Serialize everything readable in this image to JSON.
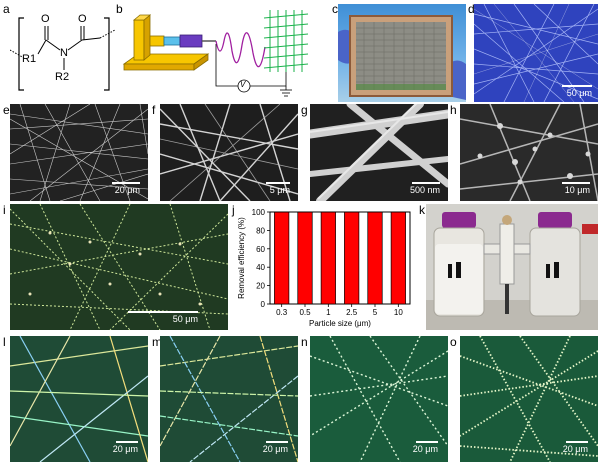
{
  "figure": {
    "panel_labels": [
      "a",
      "b",
      "c",
      "d",
      "e",
      "f",
      "g",
      "h",
      "i",
      "j",
      "k",
      "l",
      "m",
      "n",
      "o"
    ]
  },
  "structure": {
    "atoms": {
      "o_left": "O",
      "o_right": "O",
      "n": "N",
      "r1": "R1",
      "r2": "R2"
    }
  },
  "setup": {
    "voltmeter": "V"
  },
  "scale_bars": {
    "d": "50 μm",
    "e": "20 μm",
    "f": "5 μm",
    "g": "500 nm",
    "h": "10 μm",
    "i": "50 μm",
    "l": "20 μm",
    "m": "20 μm",
    "n": "20 μm",
    "o": "20 μm"
  },
  "colors": {
    "bar_fill": "#ff0000",
    "sem_bg": "#1a1a1a",
    "fiber_white": "#e6e6e6",
    "dark_field_bg": "#1d3a1f",
    "bottle_cap": "#8b2a8f"
  },
  "chart_data": {
    "type": "bar",
    "categories": [
      "0.3",
      "0.5",
      "1",
      "2.5",
      "5",
      "10"
    ],
    "values": [
      99.9,
      99.9,
      99.9,
      99.9,
      99.9,
      99.9
    ],
    "xlabel": "Particle size (μm)",
    "ylabel": "Removal efficiency (%)",
    "ylim": [
      0,
      100
    ],
    "yticks": [
      0,
      20,
      40,
      60,
      80,
      100
    ]
  }
}
